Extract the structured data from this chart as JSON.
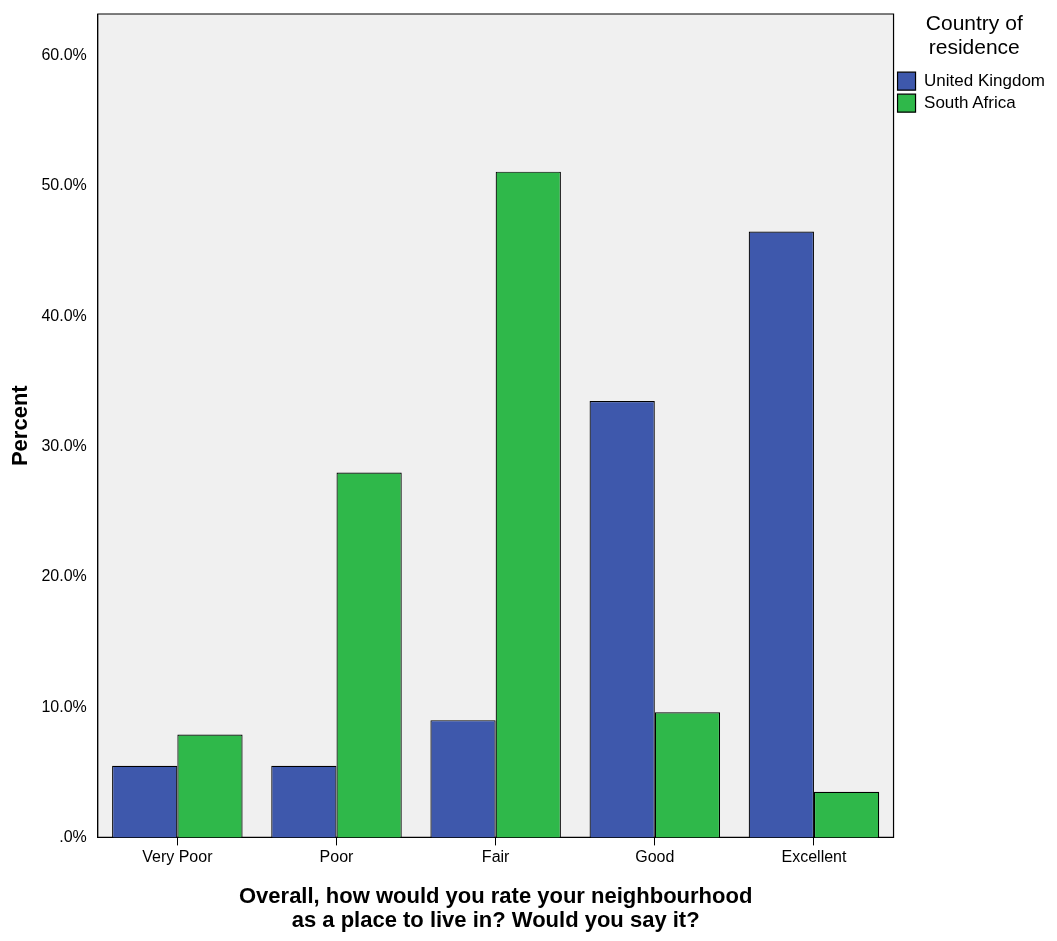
{
  "chart_data": {
    "type": "bar",
    "categories": [
      "Very Poor",
      "Poor",
      "Fair",
      "Good",
      "Excellent"
    ],
    "series": [
      {
        "name": "United Kingdom",
        "color": "#3e58ac",
        "values": [
          5.5,
          5.5,
          9.0,
          33.5,
          46.5
        ]
      },
      {
        "name": "South Africa",
        "color": "#2fb84a",
        "values": [
          7.9,
          28.0,
          51.1,
          9.6,
          3.5
        ]
      }
    ],
    "xlabel": "Overall, how would you rate your neighbourhood as a place to live in? Would you say it?",
    "ylabel": "Percent",
    "legend_title": "Country of residence",
    "legend": "right",
    "grid": false,
    "ylim": [
      0,
      63.2
    ],
    "yticks": [
      {
        "value": 0,
        "label": ".0%"
      },
      {
        "value": 10,
        "label": "10.0%"
      },
      {
        "value": 20,
        "label": "20.0%"
      },
      {
        "value": 30,
        "label": "30.0%"
      },
      {
        "value": 40,
        "label": "40.0%"
      },
      {
        "value": 50,
        "label": "50.0%"
      },
      {
        "value": 60,
        "label": "60.0%"
      }
    ]
  }
}
